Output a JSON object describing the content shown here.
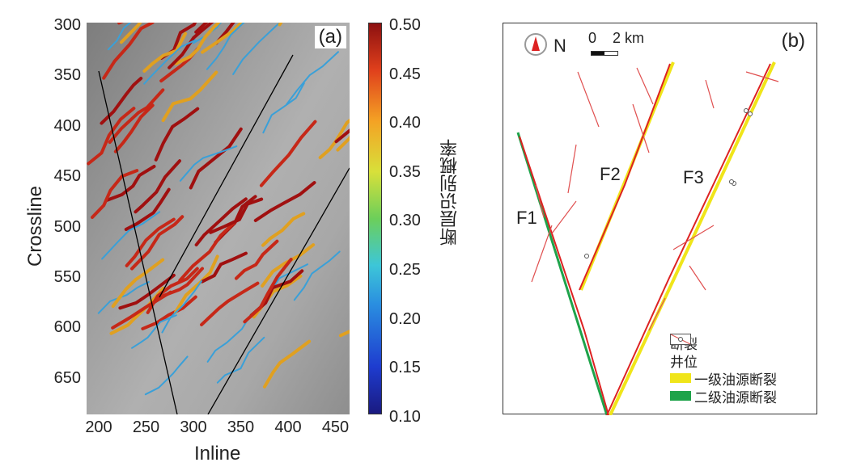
{
  "panel_a": {
    "label": "(a)",
    "xlabel": "Inline",
    "ylabel": "Crossline",
    "xticks": [
      "200",
      "250",
      "300",
      "350",
      "400",
      "450"
    ],
    "yticks": [
      "300",
      "350",
      "400",
      "450",
      "500",
      "550",
      "600",
      "650"
    ],
    "colorbar": {
      "label": "断层识别概率",
      "ticks": [
        "0.50",
        "0.45",
        "0.40",
        "0.35",
        "0.30",
        "0.25",
        "0.20",
        "0.15",
        "0.10"
      ],
      "range": [
        0.1,
        0.5
      ]
    }
  },
  "panel_b": {
    "label": "(b)",
    "north": "N",
    "scale_zero": "0",
    "scale_len": "2 km",
    "faults": [
      "F1",
      "F2",
      "F3"
    ],
    "legend": [
      {
        "label": "断裂",
        "type": "fault",
        "color": "#d9534f"
      },
      {
        "label": "井位",
        "type": "well",
        "color": "#555555"
      },
      {
        "label": "一级油源断裂",
        "type": "swatch",
        "color": "#f0e51a"
      },
      {
        "label": "二级油源断裂",
        "type": "swatch",
        "color": "#1ea34a"
      }
    ]
  }
}
